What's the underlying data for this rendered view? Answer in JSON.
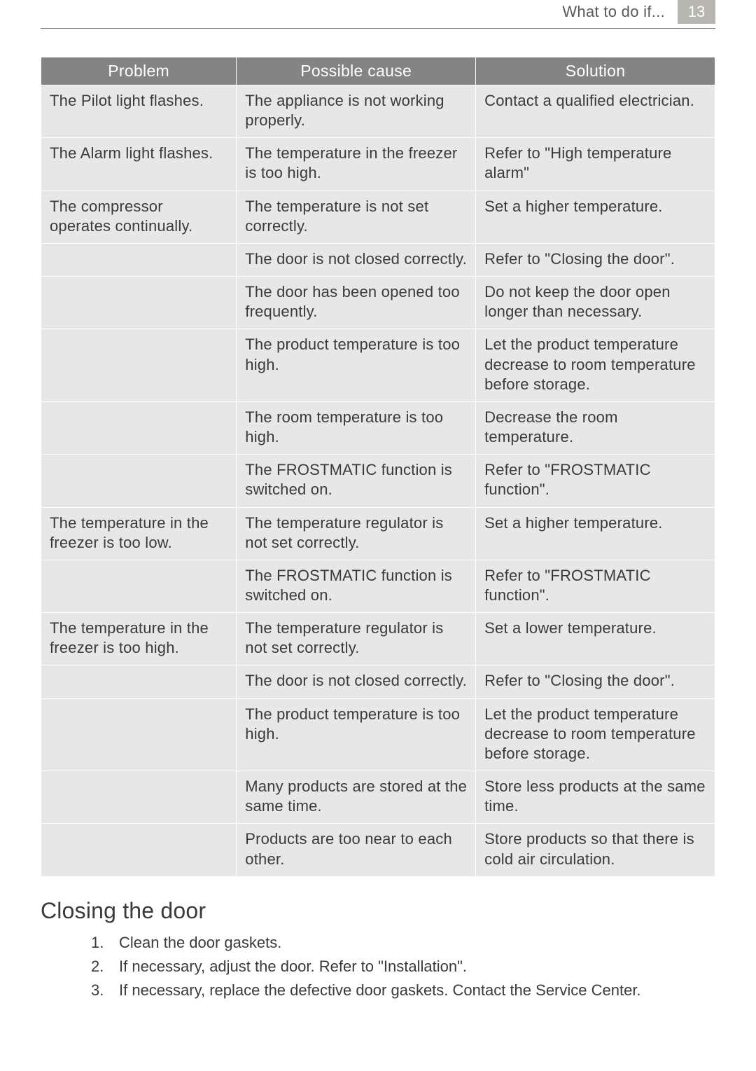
{
  "header": {
    "section_title": "What to do if...",
    "page_number": "13"
  },
  "table": {
    "columns": [
      "Problem",
      "Possible cause",
      "Solution"
    ],
    "rows": [
      {
        "problem": "The Pilot light flashes.",
        "cause": "The appliance is not working properly.",
        "solution": "Contact a qualified electrician."
      },
      {
        "problem": "The Alarm light flashes.",
        "cause": "The temperature in the freezer is too high.",
        "solution": "Refer to \"High temperature alarm\""
      },
      {
        "problem": "The compressor operates continually.",
        "cause": "The temperature is not set correctly.",
        "solution": "Set a higher temperature."
      },
      {
        "problem": "",
        "cause": "The door is not closed correctly.",
        "solution": "Refer to \"Closing the door\"."
      },
      {
        "problem": "",
        "cause": "The door has been opened too frequently.",
        "solution": "Do not keep the door open longer than necessary."
      },
      {
        "problem": "",
        "cause": "The product temperature is too high.",
        "solution": "Let the product temperature decrease to room temperature before storage."
      },
      {
        "problem": "",
        "cause": "The room temperature is too high.",
        "solution": "Decrease the room temperature."
      },
      {
        "problem": "",
        "cause": "The FROSTMATIC function is switched on.",
        "solution": "Refer to \"FROSTMATIC function\"."
      },
      {
        "problem": "The temperature in the freezer is too low.",
        "cause": "The temperature regulator is not set correctly.",
        "solution": "Set a higher temperature."
      },
      {
        "problem": "",
        "cause": "The FROSTMATIC function is switched on.",
        "solution": "Refer to \"FROSTMATIC function\"."
      },
      {
        "problem": "The temperature in the freezer is too high.",
        "cause": "The temperature regulator is not set correctly.",
        "solution": "Set a lower temperature."
      },
      {
        "problem": "",
        "cause": "The door is not closed correctly.",
        "solution": "Refer to \"Closing the door\"."
      },
      {
        "problem": "",
        "cause": "The product temperature is too high.",
        "solution": "Let the product temperature decrease to room temperature before storage."
      },
      {
        "problem": "",
        "cause": "Many products are stored at the same time.",
        "solution": "Store less products at the same time."
      },
      {
        "problem": "",
        "cause": "Products are too near to each other.",
        "solution": "Store products so that there is cold air circulation."
      }
    ]
  },
  "closing_section": {
    "heading": "Closing the door",
    "steps": [
      "Clean the door gaskets.",
      "If necessary, adjust the door. Refer to \"Installation\".",
      "If necessary, replace the defective door gaskets. Contact the Service Center."
    ]
  },
  "style": {
    "header_bg": "#848484",
    "header_fg": "#ffffff",
    "cell_bg": "#e7e7e7",
    "page_badge_bg": "#b6b5b0",
    "body_fontsize": 22,
    "heading_fontsize": 32
  }
}
